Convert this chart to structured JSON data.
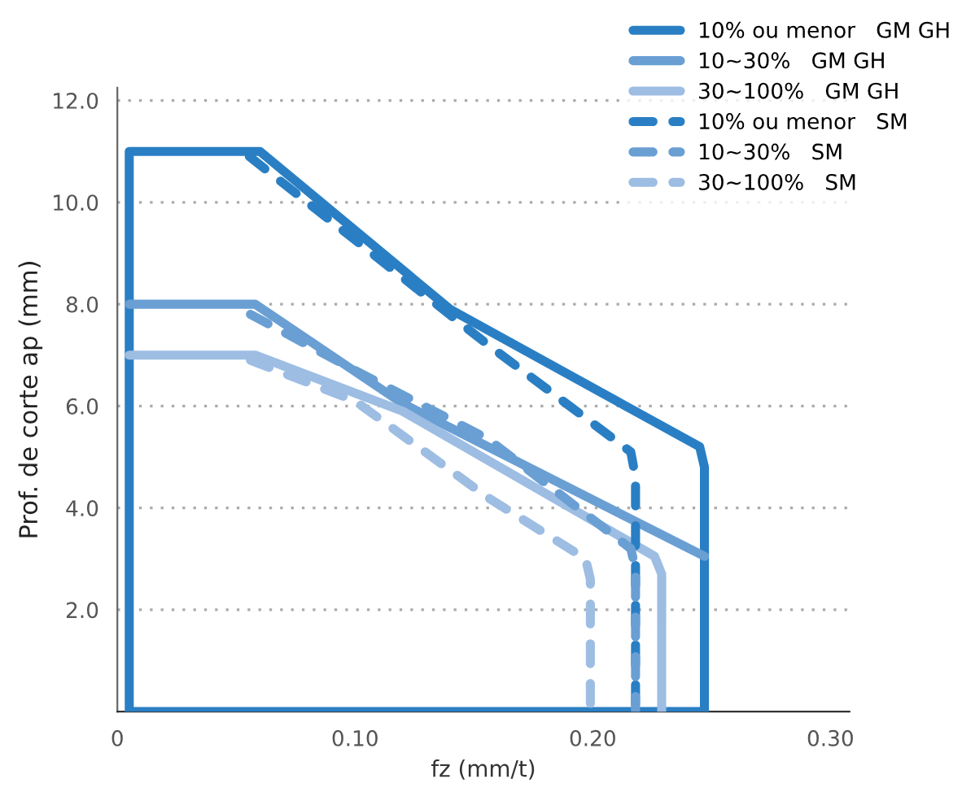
{
  "chart_data": {
    "type": "line",
    "xlabel": "fz (mm/t)",
    "ylabel": "Prof. de corte ap (mm)",
    "xlim": [
      0,
      0.308
    ],
    "ylim": [
      0,
      12.25
    ],
    "xticks": [
      {
        "value": 0,
        "label": "0"
      },
      {
        "value": 0.1,
        "label": "0.10"
      },
      {
        "value": 0.2,
        "label": "0.20"
      },
      {
        "value": 0.3,
        "label": "0.30"
      }
    ],
    "yticks": [
      {
        "value": 2,
        "label": "2.0"
      },
      {
        "value": 4,
        "label": "4.0"
      },
      {
        "value": 6,
        "label": "6.0"
      },
      {
        "value": 8,
        "label": "8.0"
      },
      {
        "value": 10,
        "label": "10.0"
      },
      {
        "value": 12,
        "label": "12.0"
      }
    ],
    "grid": "y",
    "legend": "top right",
    "marker": "none",
    "series": [
      {
        "name": "10% ou menor   GM GH",
        "color": "#2a7fc4",
        "line_style": "solid",
        "x": [
          0.247,
          0.247,
          0.005,
          0.005,
          0.06,
          0.14,
          0.245,
          0.247,
          0.247
        ],
        "values": [
          2.5,
          0,
          0,
          11.0,
          11.0,
          7.9,
          5.2,
          4.8,
          2.4
        ]
      },
      {
        "name": "10~30%   GM GH",
        "color": "#6a9fd4",
        "line_style": "solid",
        "x": [
          0.005,
          0.058,
          0.12,
          0.247
        ],
        "values": [
          8.0,
          8.0,
          6.05,
          3.05
        ]
      },
      {
        "name": "30~100%   GM GH",
        "color": "#9dbde3",
        "line_style": "solid",
        "x": [
          0.005,
          0.058,
          0.12,
          0.226,
          0.229,
          0.229
        ],
        "values": [
          7.0,
          7.0,
          5.9,
          3.05,
          2.7,
          0
        ]
      },
      {
        "name": "10% ou menor   SM",
        "color": "#2a7fc4",
        "line_style": "dashed",
        "x": [
          0.0555,
          0.156,
          0.216,
          0.218,
          0.218
        ],
        "values": [
          10.9,
          7.2,
          5.1,
          4.6,
          0
        ]
      },
      {
        "name": "10~30%   SM",
        "color": "#6a9fd4",
        "line_style": "dashed",
        "x": [
          0.056,
          0.1,
          0.156,
          0.216,
          0.218,
          0.218
        ],
        "values": [
          7.8,
          6.7,
          5.35,
          3.2,
          2.8,
          0
        ]
      },
      {
        "name": "30~100%   SM",
        "color": "#9dbde3",
        "line_style": "dashed",
        "x": [
          0.056,
          0.1,
          0.156,
          0.197,
          0.199,
          0.199
        ],
        "values": [
          6.9,
          6.1,
          4.2,
          3.0,
          2.6,
          0
        ]
      }
    ]
  }
}
